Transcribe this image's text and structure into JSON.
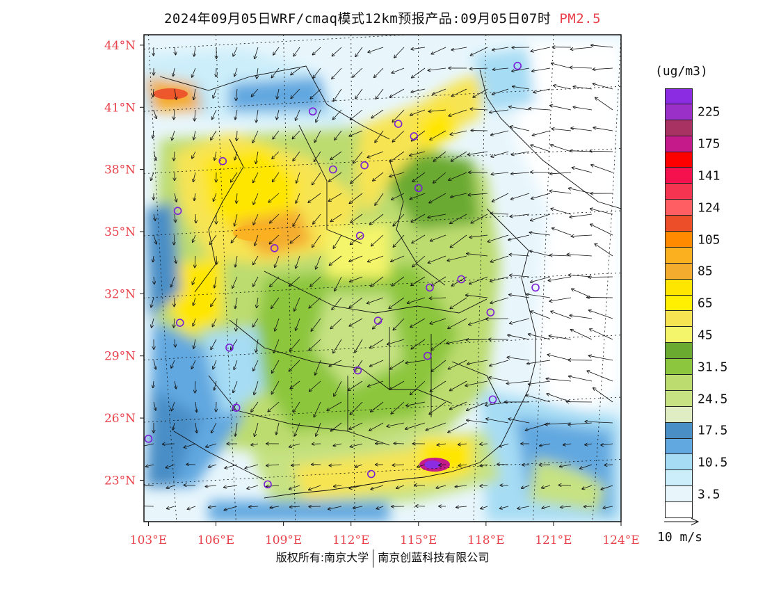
{
  "title": {
    "main": "2024年09月05日WRF/cmaq模式12km预报产品:09月05日07时",
    "variable": "PM2.5"
  },
  "map": {
    "lat_ticks": [
      "44°N",
      "41°N",
      "38°N",
      "35°N",
      "32°N",
      "29°N",
      "26°N",
      "23°N"
    ],
    "lon_ticks": [
      "103°E",
      "106°E",
      "109°E",
      "112°E",
      "115°E",
      "118°E",
      "121°E",
      "124°E"
    ],
    "lat_range": [
      21.0,
      44.5
    ],
    "lon_range": [
      102.8,
      124.0
    ],
    "tick_color": "#e8424a",
    "stations": [
      {
        "lon": 119.4,
        "lat": 43.0
      },
      {
        "lon": 110.3,
        "lat": 40.8
      },
      {
        "lon": 114.1,
        "lat": 40.2
      },
      {
        "lon": 114.8,
        "lat": 39.6
      },
      {
        "lon": 106.3,
        "lat": 38.4
      },
      {
        "lon": 111.2,
        "lat": 38.0
      },
      {
        "lon": 112.6,
        "lat": 38.2
      },
      {
        "lon": 115.0,
        "lat": 37.1
      },
      {
        "lon": 104.3,
        "lat": 36.0
      },
      {
        "lon": 112.4,
        "lat": 34.8
      },
      {
        "lon": 108.6,
        "lat": 34.2
      },
      {
        "lon": 116.9,
        "lat": 32.7
      },
      {
        "lon": 115.5,
        "lat": 32.3
      },
      {
        "lon": 120.2,
        "lat": 32.3
      },
      {
        "lon": 118.2,
        "lat": 31.1
      },
      {
        "lon": 104.4,
        "lat": 30.6
      },
      {
        "lon": 113.2,
        "lat": 30.7
      },
      {
        "lon": 106.6,
        "lat": 29.4
      },
      {
        "lon": 115.4,
        "lat": 29.0
      },
      {
        "lon": 112.3,
        "lat": 28.3
      },
      {
        "lon": 118.3,
        "lat": 26.9
      },
      {
        "lon": 106.9,
        "lat": 26.5
      },
      {
        "lon": 103.0,
        "lat": 25.0
      },
      {
        "lon": 108.3,
        "lat": 22.8
      },
      {
        "lon": 112.9,
        "lat": 23.3
      }
    ]
  },
  "legend": {
    "units": "(ug/m3)",
    "colors": [
      "#8b2be2",
      "#9b30c8",
      "#a83262",
      "#c41a8a",
      "#ff0000",
      "#f5104e",
      "#f53452",
      "#ff5e62",
      "#ec4e2a",
      "#ff8a00",
      "#fbb020",
      "#f4ac2e",
      "#ffe600",
      "#ffef00",
      "#f7e452",
      "#f4f56a",
      "#6aaa30",
      "#8cc63e",
      "#bcdc70",
      "#c6e282",
      "#e0ecc2",
      "#4a8ec6",
      "#62a8e0",
      "#a6dcf4",
      "#cceefa",
      "#e8f6fc",
      "#ffffff"
    ],
    "labels": [
      {
        "idx": 1,
        "text": "225"
      },
      {
        "idx": 3,
        "text": "175"
      },
      {
        "idx": 5,
        "text": "141"
      },
      {
        "idx": 7,
        "text": "124"
      },
      {
        "idx": 9,
        "text": "105"
      },
      {
        "idx": 11,
        "text": "85"
      },
      {
        "idx": 13,
        "text": "65"
      },
      {
        "idx": 15,
        "text": "45"
      },
      {
        "idx": 17,
        "text": "31.5"
      },
      {
        "idx": 19,
        "text": "24.5"
      },
      {
        "idx": 21,
        "text": "17.5"
      },
      {
        "idx": 23,
        "text": "10.5"
      },
      {
        "idx": 25,
        "text": "3.5"
      }
    ]
  },
  "wind_reference": {
    "label": "10 m/s"
  },
  "credits": {
    "left": "版权所有:南京大学",
    "right": "南京创蓝科技有限公司"
  }
}
